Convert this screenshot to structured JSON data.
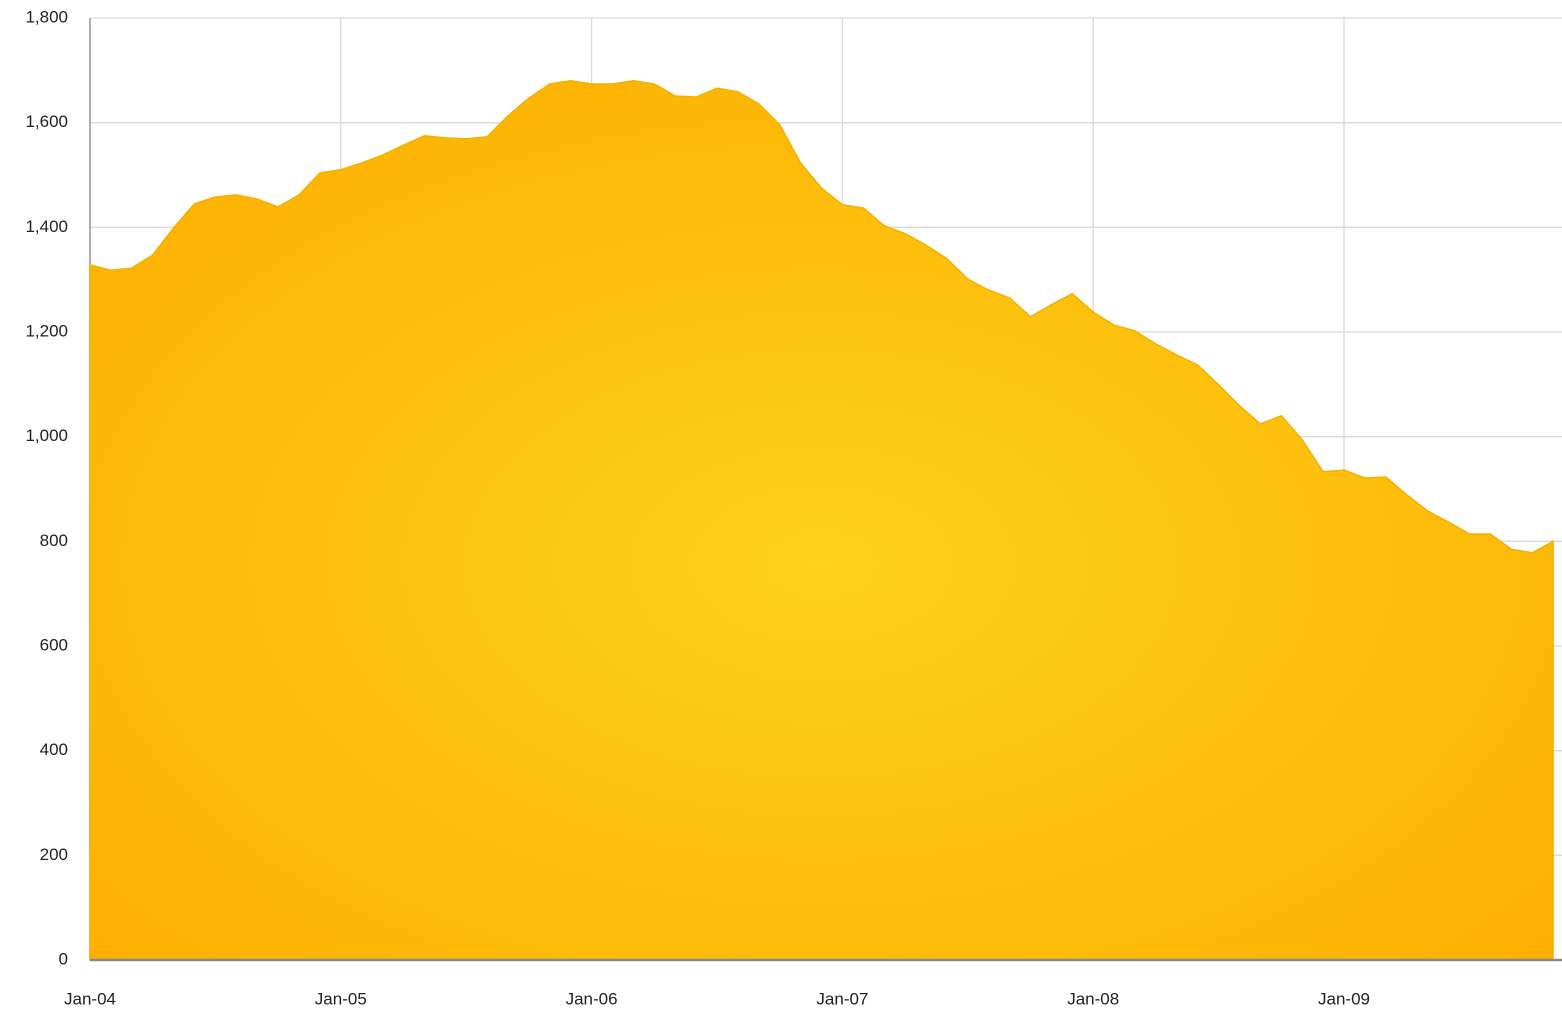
{
  "chart_data": {
    "type": "area",
    "categories": [
      "Jan-04",
      null,
      null,
      null,
      null,
      null,
      null,
      null,
      null,
      null,
      null,
      null,
      "Jan-05",
      null,
      null,
      null,
      null,
      null,
      null,
      null,
      null,
      null,
      null,
      null,
      "Jan-06",
      null,
      null,
      null,
      null,
      null,
      null,
      null,
      null,
      null,
      null,
      null,
      "Jan-07",
      null,
      null,
      null,
      null,
      null,
      null,
      null,
      null,
      null,
      null,
      null,
      "Jan-08",
      null,
      null,
      null,
      null,
      null,
      null,
      null,
      null,
      null,
      null,
      null,
      "Jan-09",
      null,
      null,
      null,
      null,
      null,
      null,
      null,
      null,
      null,
      null
    ],
    "values": [
      1328,
      1318,
      1322,
      1347,
      1399,
      1445,
      1458,
      1462,
      1454,
      1439,
      1462,
      1504,
      1510,
      1523,
      1538,
      1557,
      1575,
      1571,
      1569,
      1573,
      1613,
      1647,
      1674,
      1680,
      1674,
      1674,
      1680,
      1674,
      1651,
      1649,
      1666,
      1659,
      1636,
      1596,
      1523,
      1475,
      1443,
      1437,
      1403,
      1388,
      1366,
      1340,
      1301,
      1280,
      1265,
      1229,
      1252,
      1273,
      1238,
      1213,
      1202,
      1177,
      1156,
      1137,
      1099,
      1059,
      1024,
      1040,
      994,
      933,
      936,
      921,
      923,
      889,
      858,
      837,
      814,
      814,
      785,
      778,
      800
    ],
    "color": "#fdc00f",
    "ylim": [
      0,
      1800
    ],
    "yticks": [
      0,
      200,
      400,
      600,
      800,
      {
        "value": 1000,
        "label": "1,000"
      },
      {
        "value": 1200,
        "label": "1,200"
      },
      {
        "value": 1400,
        "label": "1,400"
      },
      {
        "value": 1600,
        "label": "1,600"
      },
      {
        "value": 1800,
        "label": "1,800"
      }
    ],
    "grid": true
  }
}
